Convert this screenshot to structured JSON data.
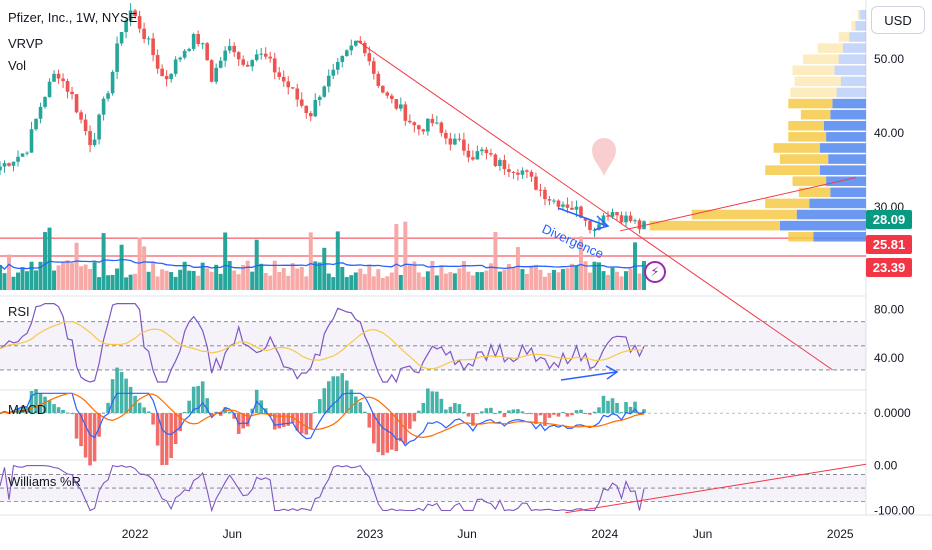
{
  "header": {
    "title": "Pfizer, Inc., 1W, NYSE",
    "indicator_vrvp": "VRVP",
    "indicator_vol": "Vol"
  },
  "currency_button": "USD",
  "colors": {
    "up": "#26a69a",
    "down": "#ef5350",
    "vol_up": "#26a69a",
    "vol_down": "#f7a9a7",
    "trendline": "#f23645",
    "annotation": "#2962ff",
    "rsi_line": "#7e57c2",
    "rsi_ma": "#f7c948",
    "macd_line": "#2962ff",
    "signal_line": "#ff6d00",
    "williams": "#7e57c2",
    "vp_up": "#5b8def",
    "vp_down": "#f7c948"
  },
  "price_tags": [
    {
      "label": "28.09",
      "value": 28.09,
      "color": "#089981"
    },
    {
      "label": "25.81",
      "value": 25.81,
      "color": "#f23645"
    },
    {
      "label": "23.39",
      "value": 23.39,
      "color": "#f23645"
    }
  ],
  "annotation_text": "Divergence",
  "chart_data": {
    "type": "candlestick",
    "title": "Pfizer, Inc., 1W, NYSE",
    "x_axis": {
      "labels": [
        "2022",
        "Jun",
        "2023",
        "Jun",
        "2024",
        "Jun",
        "2025"
      ],
      "label_dates": [
        "2022-01-01",
        "2022-06-01",
        "2023-01-01",
        "2023-06-01",
        "2024-01-01",
        "2024-06-01",
        "2025-01-01"
      ],
      "range": [
        "2021-06-05",
        "2025-02-10"
      ]
    },
    "price_axis": {
      "ticks": [
        "30.00",
        "40.00",
        "50.00"
      ],
      "tick_values": [
        30,
        40,
        50
      ],
      "range": [
        18.8,
        58
      ]
    },
    "price_path": [
      [
        "2021-06-05",
        35.5
      ],
      [
        "2021-07-15",
        37.5
      ],
      [
        "2021-08-10",
        44.5
      ],
      [
        "2021-09-01",
        48.5
      ],
      [
        "2021-09-25",
        45
      ],
      [
        "2021-10-10",
        41.5
      ],
      [
        "2021-10-25",
        38.5
      ],
      [
        "2021-11-05",
        41.5
      ],
      [
        "2021-11-25",
        47.5
      ],
      [
        "2021-12-10",
        54
      ],
      [
        "2021-12-25",
        56.5
      ],
      [
        "2022-01-05",
        55
      ],
      [
        "2022-01-25",
        51.5
      ],
      [
        "2022-02-15",
        47
      ],
      [
        "2022-03-01",
        49
      ],
      [
        "2022-03-20",
        51.5
      ],
      [
        "2022-04-05",
        53
      ],
      [
        "2022-04-20",
        51
      ],
      [
        "2022-05-01",
        47
      ],
      [
        "2022-05-10",
        49.5
      ],
      [
        "2022-06-01",
        52
      ],
      [
        "2022-06-20",
        49
      ],
      [
        "2022-07-05",
        51
      ],
      [
        "2022-07-25",
        50
      ],
      [
        "2022-08-10",
        48
      ],
      [
        "2022-08-30",
        46
      ],
      [
        "2022-09-15",
        44
      ],
      [
        "2022-09-30",
        42.5
      ],
      [
        "2022-10-20",
        46.5
      ],
      [
        "2022-11-05",
        48
      ],
      [
        "2022-11-25",
        50.5
      ],
      [
        "2022-12-12",
        52.5
      ],
      [
        "2022-12-25",
        51.5
      ],
      [
        "2023-01-10",
        47.5
      ],
      [
        "2023-01-25",
        45
      ],
      [
        "2023-02-20",
        43
      ],
      [
        "2023-03-15",
        40.5
      ],
      [
        "2023-04-10",
        41.5
      ],
      [
        "2023-04-25",
        39.5
      ],
      [
        "2023-05-20",
        38.5
      ],
      [
        "2023-06-10",
        37
      ],
      [
        "2023-06-25",
        37.5
      ],
      [
        "2023-07-15",
        36
      ],
      [
        "2023-08-05",
        35.5
      ],
      [
        "2023-08-25",
        35
      ],
      [
        "2023-09-15",
        33
      ],
      [
        "2023-10-10",
        31
      ],
      [
        "2023-11-01",
        30.5
      ],
      [
        "2023-11-20",
        29.5
      ],
      [
        "2023-12-05",
        28.5
      ],
      [
        "2023-12-15",
        26.5
      ],
      [
        "2023-12-25",
        28.8
      ],
      [
        "2024-01-10",
        29.5
      ],
      [
        "2024-01-30",
        28.6
      ],
      [
        "2024-02-15",
        28
      ],
      [
        "2024-02-25",
        27.2
      ],
      [
        "2024-03-08",
        28.09
      ]
    ],
    "horizontal_levels": [
      25.81,
      23.39
    ],
    "trendline": [
      [
        "2022-12-12",
        52.5
      ],
      [
        "2024-12-20",
        8
      ]
    ],
    "channel": [
      [
        "2024-01-25",
        26.8
      ],
      [
        "2025-01-25",
        34.0
      ]
    ],
    "volume_profile": [
      {
        "price": 56,
        "up": 3,
        "down": 1
      },
      {
        "price": 54.5,
        "up": 5,
        "down": 2
      },
      {
        "price": 53,
        "up": 8,
        "down": 5
      },
      {
        "price": 51.5,
        "up": 11,
        "down": 12
      },
      {
        "price": 50,
        "up": 13,
        "down": 17
      },
      {
        "price": 48.5,
        "up": 15,
        "down": 20
      },
      {
        "price": 47,
        "up": 12,
        "down": 22
      },
      {
        "price": 45.5,
        "up": 14,
        "down": 22
      },
      {
        "price": 44,
        "up": 16,
        "down": 21
      },
      {
        "price": 42.5,
        "up": 17,
        "down": 14
      },
      {
        "price": 41,
        "up": 20,
        "down": 17
      },
      {
        "price": 39.5,
        "up": 19,
        "down": 18
      },
      {
        "price": 38,
        "up": 22,
        "down": 22
      },
      {
        "price": 36.5,
        "up": 18,
        "down": 23
      },
      {
        "price": 35,
        "up": 22,
        "down": 26
      },
      {
        "price": 33.5,
        "up": 19,
        "down": 16
      },
      {
        "price": 32,
        "up": 17,
        "down": 15
      },
      {
        "price": 30.5,
        "up": 27,
        "down": 21
      },
      {
        "price": 29,
        "up": 33,
        "down": 50
      },
      {
        "price": 27.5,
        "up": 41,
        "down": 62
      },
      {
        "price": 26,
        "up": 25,
        "down": 12
      }
    ],
    "panes": [
      {
        "name": "RSI",
        "ticks": [
          "80.00",
          "40.00"
        ],
        "tick_values": [
          80,
          40
        ],
        "range": [
          15,
          88
        ],
        "bands": [
          70,
          50,
          30
        ]
      },
      {
        "name": "MACD",
        "ticks": [
          "0.0000"
        ],
        "tick_values": [
          0
        ],
        "range": [
          -3.4,
          1.6
        ]
      },
      {
        "name": "Williams %R",
        "ticks": [
          "0.00",
          "-100.00"
        ],
        "tick_values": [
          0,
          -100
        ],
        "range": [
          -110,
          8
        ],
        "bands": [
          -20,
          -50,
          -80
        ]
      }
    ]
  }
}
